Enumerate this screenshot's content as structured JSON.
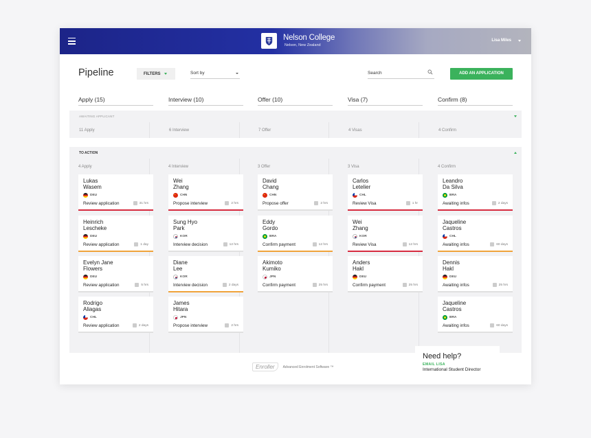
{
  "header": {
    "brand_name": "Nelson College",
    "brand_sub": "Nelson, New Zealand",
    "user": "Lisa Miles"
  },
  "toolbar": {
    "title": "Pipeline",
    "filters": "FILTERS",
    "sort": "Sort by",
    "search_placeholder": "Search",
    "add": "ADD AN APPLICATION"
  },
  "columns": [
    {
      "label": "Apply (15)"
    },
    {
      "label": "Interview (10)"
    },
    {
      "label": "Offer (10)"
    },
    {
      "label": "Visa (7)"
    },
    {
      "label": "Confirm (8)"
    }
  ],
  "awaiting": {
    "title": "AWAITING APPLICANT",
    "counts": [
      "11 Apply",
      "6 Interview",
      "7 Offer",
      "4 Visas",
      "4 Confirm"
    ]
  },
  "action": {
    "title": "TO ACTION",
    "counts": [
      "4 Apply",
      "4 Interview",
      "3 Offer",
      "3 Visa",
      "4 Confirm"
    ]
  },
  "cards": [
    [
      {
        "first": "Lukas",
        "last": "Wasem",
        "country": "DEU",
        "action": "Review application",
        "time": "31 hrs",
        "status": "red"
      },
      {
        "first": "Heinrich",
        "last": "Lescheke",
        "country": "DEU",
        "action": "Review application",
        "time": "1 day",
        "status": "orange"
      },
      {
        "first": "Evelyn Jane",
        "last": "Flowers",
        "country": "DEU",
        "action": "Review application",
        "time": "5 hrs",
        "status": "none"
      },
      {
        "first": "Rodrigo",
        "last": "Aliagas",
        "country": "CHL",
        "action": "Review application",
        "time": "2 days",
        "status": "none"
      }
    ],
    [
      {
        "first": "Wei",
        "last": "Zhang",
        "country": "CHN",
        "action": "Propose interview",
        "time": "2 hrs",
        "status": "red"
      },
      {
        "first": "Sung Hyo",
        "last": "Park",
        "country": "KOR",
        "action": "Interview decision",
        "time": "12 hrs",
        "status": "none"
      },
      {
        "first": "Diane",
        "last": "Lee",
        "country": "KOR",
        "action": "Interview decision",
        "time": "2 days",
        "status": "orange"
      },
      {
        "first": "James",
        "last": "Hitara",
        "country": "JPN",
        "action": "Propose interview",
        "time": "2 hrs",
        "status": "none"
      }
    ],
    [
      {
        "first": "David",
        "last": "Chang",
        "country": "CHN",
        "action": "Propose offer",
        "time": "2 hrs",
        "status": "none"
      },
      {
        "first": "Eddy",
        "last": "Gordo",
        "country": "BRA",
        "action": "Confirm payment",
        "time": "12 hrs",
        "status": "orange"
      },
      {
        "first": "Akimoto",
        "last": "Kumiko",
        "country": "JPN",
        "action": "Confirm payment",
        "time": "25 hrs",
        "status": "none"
      }
    ],
    [
      {
        "first": "Carlos",
        "last": "Letelier",
        "country": "CHL",
        "action": "Review Visa",
        "time": "1 hr",
        "status": "red"
      },
      {
        "first": "Wei",
        "last": "Zhang",
        "country": "KOR",
        "action": "Review Visa",
        "time": "12 hrs",
        "status": "red"
      },
      {
        "first": "Anders",
        "last": "Hakl",
        "country": "DEU",
        "action": "Confirm payment",
        "time": "25 hrs",
        "status": "none"
      }
    ],
    [
      {
        "first": "Leandro",
        "last": "Da Silva",
        "country": "BRA",
        "action": "Awaiting infos",
        "time": "2 days",
        "status": "red"
      },
      {
        "first": "Jaqueline",
        "last": "Castros",
        "country": "CHL",
        "action": "Awaiting infos",
        "time": "60 days",
        "status": "orange"
      },
      {
        "first": "Dennis",
        "last": "Hakl",
        "country": "DEU",
        "action": "Awaiting infos",
        "time": "25 hrs",
        "status": "none"
      },
      {
        "first": "Jaqueline",
        "last": "Castros",
        "country": "BRA",
        "action": "Awaiting infos",
        "time": "60 days",
        "status": "none"
      }
    ]
  ],
  "footer": {
    "logo": "Enroller",
    "tagline": "Advanced Enrolment Software ™"
  },
  "help": {
    "title": "Need help?",
    "link": "EMAIL LISA",
    "role": "International Student Director"
  }
}
